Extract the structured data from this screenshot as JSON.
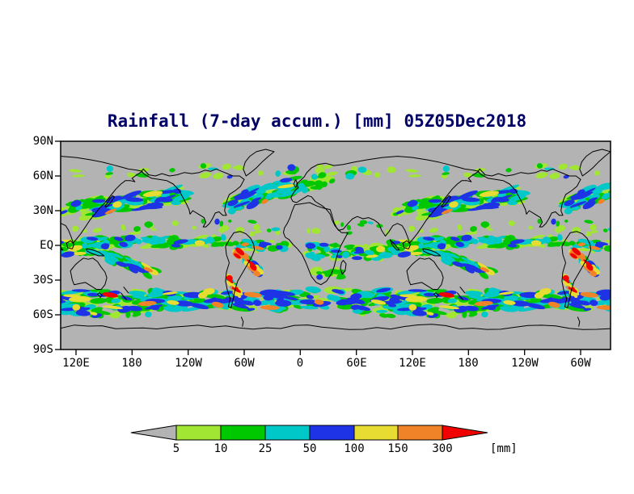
{
  "chart_data": {
    "type": "heatmap",
    "title": "Rainfall (7-day accum.) [mm] 05Z05Dec2018",
    "x_axis": {
      "tick_labels": [
        "120E",
        "180",
        "120W",
        "60W",
        "0",
        "60E",
        "120E",
        "180",
        "120W",
        "60W"
      ]
    },
    "y_axis": {
      "tick_labels": [
        "90N",
        "60N",
        "30N",
        "EQ",
        "30S",
        "60S",
        "90S"
      ]
    },
    "colorbar": {
      "unit": "[mm]",
      "tick_labels": [
        "5",
        "10",
        "25",
        "50",
        "100",
        "150",
        "300"
      ],
      "left_arrow_color": "#b3b3b3",
      "box_colors": [
        "#a0e632",
        "#00c800",
        "#00c8c8",
        "#1e32e6",
        "#e6dc32",
        "#f08228"
      ],
      "right_arrow_color": "#f00000"
    },
    "map": {
      "background_color": "#b3b3b3",
      "coastline_color": "#000000",
      "frame_color": "#000000"
    }
  }
}
